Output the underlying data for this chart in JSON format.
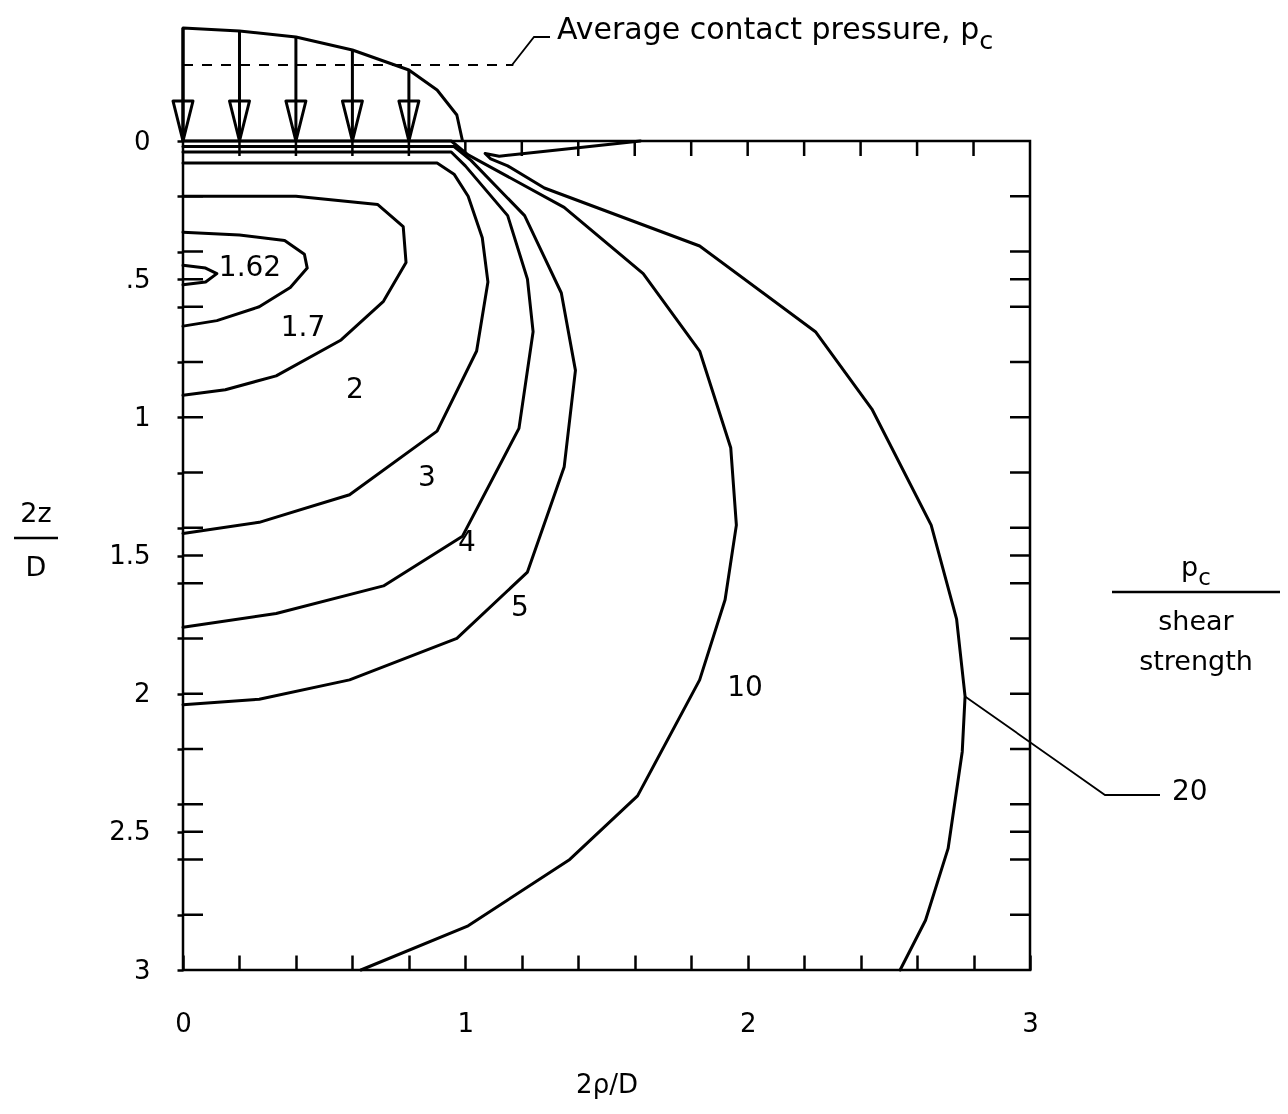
{
  "chart_data": {
    "type": "line",
    "xlabel": "2ρ/D",
    "ylabel": "2z\nD",
    "legend_title": "p$_{c}$\nshear strength",
    "xlim": [
      0,
      3
    ],
    "ylim": [
      3,
      0
    ],
    "xticks": [
      0,
      {
        "value": 0.2,
        "label": null
      },
      {
        "value": 0.4,
        "label": null
      },
      {
        "value": 0.6,
        "label": null
      },
      {
        "value": 0.8,
        "label": null
      },
      1,
      {
        "value": 1.2,
        "label": null
      },
      {
        "value": 1.4,
        "label": null
      },
      {
        "value": 1.6,
        "label": null
      },
      {
        "value": 1.8,
        "label": null
      },
      2,
      {
        "value": 2.2,
        "label": null
      },
      {
        "value": 2.4,
        "label": null
      },
      {
        "value": 2.6,
        "label": null
      },
      {
        "value": 2.8,
        "label": null
      },
      3
    ],
    "yticks": [
      0,
      {
        "value": 0.2,
        "label": null
      },
      {
        "value": 0.4,
        "label": null
      },
      {
        "value": 0.5,
        "label": ".5"
      },
      {
        "value": 0.6,
        "label": null
      },
      {
        "value": 0.8,
        "label": null
      },
      1,
      {
        "value": 1.2,
        "label": null
      },
      {
        "value": 1.4,
        "label": null
      },
      1.5,
      {
        "value": 1.6,
        "label": null
      },
      {
        "value": 1.8,
        "label": null
      },
      2,
      {
        "value": 2.2,
        "label": null
      },
      {
        "value": 2.4,
        "label": null
      },
      2.5,
      {
        "value": 2.6,
        "label": null
      },
      {
        "value": 2.8,
        "label": null
      },
      3
    ],
    "grid": false,
    "legend": false,
    "marker": "none",
    "line_style": "solid",
    "series": [
      {
        "color": "#000000",
        "x": [
          0,
          0.08,
          0.12,
          0.08,
          0
        ],
        "values": [
          0.45,
          0.46,
          0.48,
          0.51,
          0.52
        ]
      },
      {
        "color": "#000000",
        "x": [
          0,
          0.2,
          0.36,
          0.43,
          0.44,
          0.38,
          0.27,
          0.12,
          0
        ],
        "values": [
          0.33,
          0.34,
          0.36,
          0.41,
          0.46,
          0.53,
          0.6,
          0.65,
          0.67
        ]
      },
      {
        "color": "#000000",
        "x": [
          0,
          0.4,
          0.69,
          0.78,
          0.79,
          0.71,
          0.56,
          0.33,
          0.15,
          0
        ],
        "values": [
          0.2,
          0.2,
          0.23,
          0.31,
          0.44,
          0.58,
          0.72,
          0.85,
          0.9,
          0.92
        ]
      },
      {
        "color": "#000000",
        "x": [
          0,
          0.9,
          0.96,
          1.01,
          1.06,
          1.08,
          1.04,
          0.9,
          0.59,
          0.27,
          0
        ],
        "values": [
          0.08,
          0.08,
          0.12,
          0.2,
          0.35,
          0.51,
          0.76,
          1.05,
          1.28,
          1.38,
          1.42
        ]
      },
      {
        "color": "#000000",
        "x": [
          0,
          0.95,
          1.0,
          1.15,
          1.22,
          1.24,
          1.19,
          0.99,
          0.71,
          0.33,
          0
        ],
        "values": [
          0.04,
          0.04,
          0.09,
          0.27,
          0.5,
          0.69,
          1.04,
          1.43,
          1.61,
          1.71,
          1.76
        ]
      },
      {
        "color": "#000000",
        "x": [
          0,
          0.96,
          1.02,
          1.21,
          1.34,
          1.39,
          1.35,
          1.22,
          0.97,
          0.59,
          0.27,
          0
        ],
        "values": [
          0.02,
          0.02,
          0.07,
          0.27,
          0.55,
          0.83,
          1.18,
          1.56,
          1.8,
          1.95,
          2.02,
          2.04
        ]
      },
      {
        "color": "#000000",
        "x": [
          0,
          0.95,
          1.01,
          1.35,
          1.63,
          1.83,
          1.94,
          1.96,
          1.92,
          1.83,
          1.61,
          1.37,
          1.01,
          0.63
        ],
        "values": [
          0,
          0,
          0.05,
          0.24,
          0.48,
          0.76,
          1.11,
          1.39,
          1.66,
          1.95,
          2.37,
          2.6,
          2.84,
          3.0
        ]
      },
      {
        "color": "#000000",
        "x": [
          1.62,
          1.35,
          1.12,
          1.07,
          1.09,
          1.15,
          1.28,
          1.83,
          2.24,
          2.44,
          2.65,
          2.74,
          2.77,
          2.76,
          2.71,
          2.63,
          2.54
        ],
        "values": [
          0,
          0.03,
          0.055,
          0.045,
          0.065,
          0.09,
          0.17,
          0.38,
          0.69,
          0.97,
          1.39,
          1.73,
          2.01,
          2.21,
          2.56,
          2.82,
          3.0
        ]
      }
    ],
    "annotations": [
      "Average contact pressure, p$_{c}$",
      "1.62",
      "1.7",
      "2",
      "3",
      "4",
      "5",
      "10",
      {
        "text": "20",
        "x": 2.77,
        "y": 2.01
      }
    ]
  }
}
